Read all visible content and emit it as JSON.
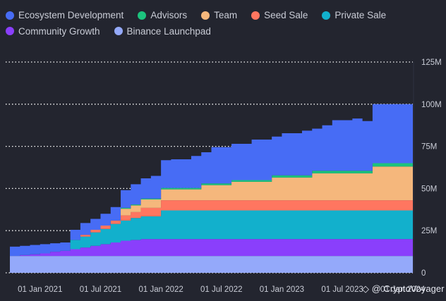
{
  "chart_data": {
    "type": "area",
    "stacked": true,
    "step": true,
    "title": "",
    "xlabel": "",
    "ylabel": "",
    "ylim": [
      0,
      125
    ],
    "y_unit": "M",
    "y_ticks": [
      "0",
      "25M",
      "50M",
      "75M",
      "100M",
      "125M"
    ],
    "y_tick_values": [
      0,
      25,
      50,
      75,
      100,
      125
    ],
    "x_ticks": [
      "01 Jan 2021",
      "01 Jul 2021",
      "01 Jan 2022",
      "01 Jul 2022",
      "01 Jan 2023",
      "01 Jul 2023",
      "01 Jan 2024"
    ],
    "x_tick_months": [
      3,
      9,
      15,
      21,
      27,
      33,
      39
    ],
    "grid": true,
    "legend_position": "top",
    "x_months": [
      0,
      1,
      2,
      3,
      4,
      5,
      6,
      7,
      8,
      9,
      10,
      11,
      12,
      13,
      14,
      15,
      16,
      17,
      18,
      19,
      20,
      21,
      22,
      23,
      24,
      25,
      26,
      27,
      28,
      29,
      30,
      31,
      32,
      33,
      34,
      35,
      36,
      37,
      38,
      39
    ],
    "series": [
      {
        "name": "Binance Launchpad",
        "color": "#94a9fa",
        "values": [
          10,
          10,
          10,
          10,
          10,
          10,
          10,
          10,
          10,
          10,
          10,
          10,
          10,
          10,
          10,
          10,
          10,
          10,
          10,
          10,
          10,
          10,
          10,
          10,
          10,
          10,
          10,
          10,
          10,
          10,
          10,
          10,
          10,
          10,
          10,
          10,
          10,
          10,
          10,
          10
        ]
      },
      {
        "name": "Community Growth",
        "color": "#8a3ffc",
        "values": [
          0,
          0.5,
          1,
          1.5,
          2.5,
          3,
          4,
          5,
          6,
          7,
          8,
          9,
          9.5,
          10,
          10,
          10,
          10,
          10,
          10,
          10,
          10,
          10,
          10,
          10,
          10,
          10,
          10,
          10,
          10,
          10,
          10,
          10,
          10,
          10,
          10,
          10,
          10,
          10,
          10,
          10
        ]
      },
      {
        "name": "Private Sale",
        "color": "#12b0cc",
        "values": [
          0,
          0,
          0,
          0,
          0,
          0,
          5.5,
          6.5,
          8,
          9,
          11,
          12,
          13,
          13.5,
          13.5,
          17,
          17,
          17,
          17,
          17,
          17,
          17,
          17,
          17,
          17,
          17,
          17,
          17,
          17,
          17,
          17,
          17,
          17,
          17,
          17,
          17,
          17,
          17,
          17,
          17
        ]
      },
      {
        "name": "Seed Sale",
        "color": "#ff7660",
        "values": [
          0,
          0,
          0,
          0,
          0,
          0,
          0,
          1,
          1.5,
          2,
          2,
          3,
          3.5,
          5,
          5,
          6,
          6,
          6,
          6,
          6,
          6,
          6,
          6,
          6,
          6,
          6,
          6,
          6,
          6,
          6,
          6,
          6,
          6,
          6,
          6,
          6,
          6,
          6,
          6,
          6
        ]
      },
      {
        "name": "Team",
        "color": "#f5b77c",
        "values": [
          0,
          0,
          0,
          0,
          0,
          0,
          0,
          0,
          0,
          0,
          0,
          4,
          4,
          5,
          5,
          6.5,
          6.5,
          6.5,
          6.5,
          9,
          9,
          9,
          11,
          11,
          11,
          11,
          13.5,
          13.5,
          13.5,
          13.5,
          16,
          16,
          16,
          16,
          16,
          16,
          20,
          20,
          20,
          20
        ]
      },
      {
        "name": "Advisors",
        "color": "#1cc27d",
        "values": [
          0,
          0,
          0,
          0,
          0,
          0,
          0,
          0,
          0,
          0,
          0,
          0.5,
          0.5,
          0.5,
          0.5,
          0.8,
          0.8,
          0.8,
          0.8,
          1,
          1,
          1,
          1,
          1,
          1,
          1,
          1.3,
          1.3,
          1.3,
          1.3,
          1.5,
          1.5,
          1.5,
          1.5,
          1.5,
          1.5,
          2,
          2,
          2,
          2
        ]
      },
      {
        "name": "Ecosystem Development",
        "color": "#476cf5",
        "values": [
          5.5,
          5.5,
          5.5,
          5.5,
          5,
          5,
          6,
          7,
          6.5,
          7,
          8,
          10.5,
          12,
          12,
          13.5,
          16.5,
          17,
          17,
          19,
          18.5,
          21.5,
          21.5,
          21.5,
          21.5,
          24,
          24,
          23,
          25,
          25,
          26.5,
          25,
          27,
          30,
          30,
          31,
          29.5,
          35,
          35,
          35,
          35
        ]
      }
    ]
  },
  "legend": {
    "items": [
      {
        "label": "Ecosystem Development",
        "color": "#476cf5"
      },
      {
        "label": "Advisors",
        "color": "#1cc27d"
      },
      {
        "label": "Team",
        "color": "#f5b77c"
      },
      {
        "label": "Seed Sale",
        "color": "#ff7660"
      },
      {
        "label": "Private Sale",
        "color": "#12b0cc"
      },
      {
        "label": "Community Growth",
        "color": "#8a3ffc"
      },
      {
        "label": "Binance Launchpad",
        "color": "#94a9fa"
      }
    ]
  },
  "watermark": {
    "text": "@ CryptoVoyager",
    "icon": "binance-logo-icon"
  }
}
